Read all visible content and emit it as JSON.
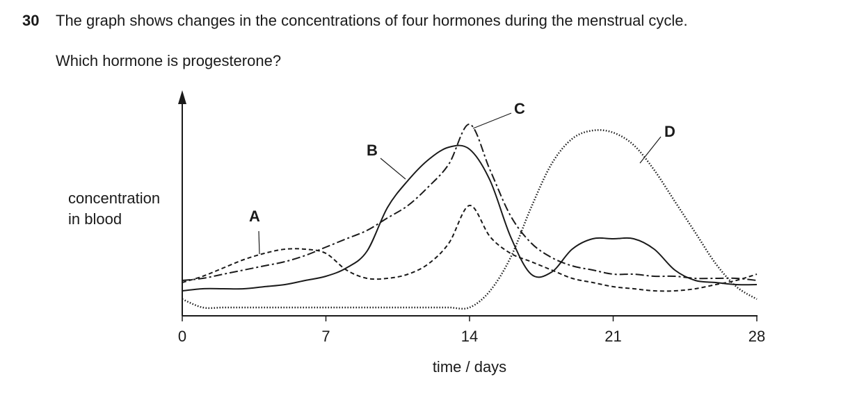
{
  "question": {
    "number": "30",
    "text": "The graph shows changes in the concentrations of four hormones during the menstrual cycle.",
    "prompt": "Which hormone is progesterone?"
  },
  "chart_data": {
    "type": "line",
    "y_label": [
      "concentration",
      "in blood"
    ],
    "x_label": "time / days",
    "x": [
      0,
      1,
      2,
      3,
      4,
      5,
      6,
      7,
      8,
      9,
      10,
      11,
      12,
      13,
      14,
      15,
      16,
      17,
      18,
      19,
      20,
      21,
      22,
      23,
      24,
      25,
      26,
      27,
      28
    ],
    "xlim": [
      0,
      28
    ],
    "xticks": [
      0,
      7,
      14,
      21,
      28
    ],
    "ylim": [
      0,
      100
    ],
    "series": [
      {
        "name": "A",
        "color": "#1a1a1a",
        "dash": "dashed",
        "values": [
          16,
          19,
          23,
          27,
          30,
          32,
          32,
          30,
          22,
          18,
          18,
          20,
          25,
          35,
          53,
          38,
          30,
          26,
          22,
          18,
          16,
          14,
          13,
          12,
          12,
          13,
          15,
          17,
          20
        ]
      },
      {
        "name": "B",
        "color": "#1a1a1a",
        "dash": "solid",
        "values": [
          12,
          13,
          13,
          13,
          14,
          15,
          17,
          19,
          23,
          31,
          52,
          65,
          75,
          81,
          80,
          65,
          38,
          20,
          21,
          32,
          37,
          37,
          37,
          32,
          22,
          17,
          16,
          15,
          15
        ]
      },
      {
        "name": "C",
        "color": "#1a1a1a",
        "dash": "dashdot",
        "values": [
          17,
          18,
          20,
          22,
          24,
          26,
          29,
          33,
          37,
          41,
          47,
          53,
          62,
          73,
          92,
          70,
          48,
          35,
          28,
          24,
          22,
          20,
          20,
          19,
          19,
          18,
          18,
          18,
          17
        ]
      },
      {
        "name": "D",
        "color": "#1a1a1a",
        "dash": "dotted",
        "values": [
          8,
          4,
          4,
          4,
          4,
          4,
          4,
          4,
          4,
          4,
          4,
          4,
          4,
          4,
          4,
          12,
          28,
          52,
          73,
          85,
          89,
          88,
          82,
          70,
          55,
          40,
          25,
          14,
          8
        ]
      }
    ]
  }
}
